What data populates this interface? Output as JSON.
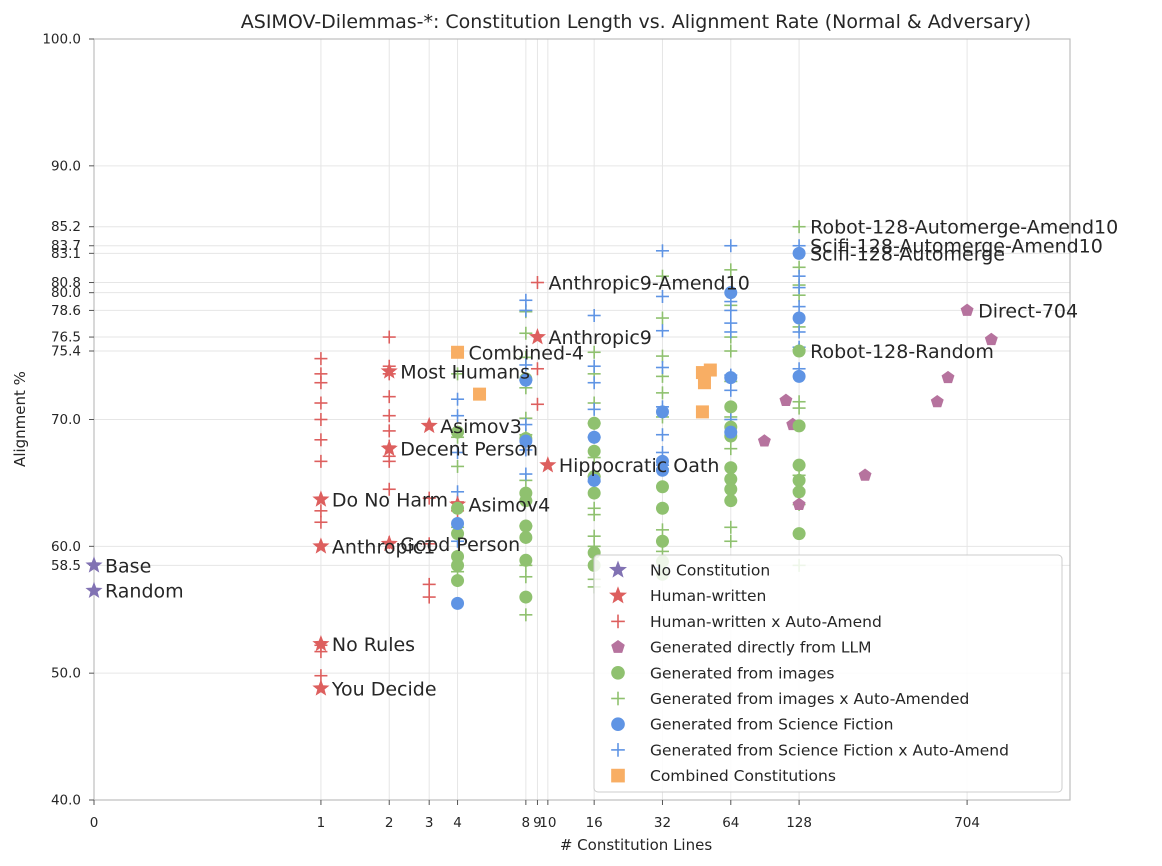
{
  "chart_data": {
    "type": "scatter",
    "title": "ASIMOV-Dilemmas-*: Constitution Length vs. Alignment Rate (Normal & Adversary)",
    "xlabel": "# Constitution Lines",
    "ylabel": "Alignment %",
    "x_scale": "symlog",
    "ylim": [
      40.0,
      100.0
    ],
    "x_ticks": [
      0,
      1,
      2,
      3,
      4,
      8,
      9,
      10,
      16,
      32,
      64,
      128,
      704
    ],
    "x_tick_labels": [
      "0",
      "1",
      "2",
      "3",
      "4",
      "8",
      "9",
      "10",
      "16",
      "32",
      "64",
      "128",
      "704"
    ],
    "y_ticks": [
      40.0,
      50.0,
      58.5,
      60.0,
      70.0,
      75.4,
      76.5,
      78.6,
      80.0,
      80.8,
      83.1,
      83.7,
      85.2,
      90.0,
      100.0
    ],
    "y_tick_labels": [
      "40.0",
      "50.0",
      "58.5",
      "60.0",
      "70.0",
      "75.4",
      "76.5",
      "78.6",
      "80.0",
      "80.8",
      "83.1",
      "83.7",
      "85.2",
      "90.0",
      "100.0"
    ],
    "grid": true,
    "legend_position": "bottom-right",
    "colors": {
      "purple": "#8172b3",
      "red": "#dd5f5e",
      "pink": "#b6739e",
      "green": "#8fc16f",
      "blue": "#5f94e4",
      "orange": "#f8ae64",
      "grid": "#e6e6e6",
      "axis": "#bdbdbd"
    },
    "series": [
      {
        "name": "No Constitution",
        "marker": "star",
        "color": "#8172b3",
        "points": [
          [
            0,
            58.5
          ],
          [
            0,
            56.5
          ]
        ]
      },
      {
        "name": "Human-written",
        "marker": "star",
        "color": "#dd5f5e",
        "points": [
          [
            1,
            63.7
          ],
          [
            1,
            60.0
          ],
          [
            1,
            52.3
          ],
          [
            1,
            48.8
          ],
          [
            2,
            73.8
          ],
          [
            2,
            67.7
          ],
          [
            2,
            60.2
          ],
          [
            3,
            69.5
          ],
          [
            4,
            63.3
          ],
          [
            9,
            76.5
          ],
          [
            10,
            66.4
          ]
        ]
      },
      {
        "name": "Human-written x Auto-Amend",
        "marker": "plus",
        "color": "#dd5f5e",
        "points": [
          [
            1,
            74.8
          ],
          [
            1,
            73.6
          ],
          [
            1,
            72.9
          ],
          [
            1,
            71.3
          ],
          [
            1,
            70.0
          ],
          [
            1,
            68.4
          ],
          [
            1,
            66.7
          ],
          [
            1,
            62.8
          ],
          [
            1,
            61.9
          ],
          [
            1,
            52.2
          ],
          [
            1,
            51.7
          ],
          [
            1,
            49.8
          ],
          [
            2,
            76.5
          ],
          [
            2,
            74.2
          ],
          [
            2,
            73.6
          ],
          [
            2,
            71.8
          ],
          [
            2,
            70.3
          ],
          [
            2,
            69.1
          ],
          [
            2,
            67.9
          ],
          [
            2,
            67.1
          ],
          [
            2,
            66.7
          ],
          [
            2,
            64.5
          ],
          [
            2,
            60.3
          ],
          [
            3,
            63.8
          ],
          [
            3,
            60.2
          ],
          [
            3,
            57.0
          ],
          [
            3,
            56.0
          ],
          [
            4,
            63.5
          ],
          [
            4,
            62.8
          ],
          [
            9,
            80.8
          ],
          [
            9,
            74.0
          ],
          [
            9,
            71.2
          ]
        ]
      },
      {
        "name": "Generated directly from LLM",
        "marker": "pentagon",
        "color": "#b6739e",
        "points": [
          [
            90,
            68.3
          ],
          [
            112,
            71.5
          ],
          [
            120,
            69.6
          ],
          [
            128,
            64.3
          ],
          [
            128,
            63.3
          ],
          [
            250,
            65.6
          ],
          [
            520,
            71.4
          ],
          [
            580,
            73.3
          ],
          [
            704,
            78.6
          ],
          [
            900,
            76.3
          ]
        ]
      },
      {
        "name": "Generated from images",
        "marker": "circle",
        "color": "#8fc16f",
        "points": [
          [
            4,
            69.0
          ],
          [
            4,
            63.0
          ],
          [
            4,
            61.0
          ],
          [
            4,
            59.2
          ],
          [
            4,
            58.5
          ],
          [
            4,
            57.3
          ],
          [
            8,
            73.2
          ],
          [
            8,
            68.5
          ],
          [
            8,
            64.2
          ],
          [
            8,
            63.6
          ],
          [
            8,
            61.6
          ],
          [
            8,
            60.7
          ],
          [
            8,
            58.9
          ],
          [
            8,
            56.0
          ],
          [
            16,
            69.7
          ],
          [
            16,
            67.5
          ],
          [
            16,
            65.5
          ],
          [
            16,
            64.2
          ],
          [
            16,
            59.5
          ],
          [
            16,
            58.5
          ],
          [
            32,
            64.7
          ],
          [
            32,
            63.0
          ],
          [
            32,
            60.4
          ],
          [
            32,
            58.8
          ],
          [
            32,
            57.8
          ],
          [
            64,
            71.0
          ],
          [
            64,
            69.4
          ],
          [
            64,
            68.7
          ],
          [
            64,
            66.2
          ],
          [
            64,
            65.3
          ],
          [
            64,
            64.5
          ],
          [
            64,
            63.6
          ],
          [
            128,
            75.4
          ],
          [
            128,
            69.5
          ],
          [
            128,
            66.4
          ],
          [
            128,
            65.2
          ],
          [
            128,
            64.3
          ],
          [
            128,
            61.0
          ]
        ]
      },
      {
        "name": "Generated from images x Auto-Amended",
        "marker": "plus",
        "color": "#8fc16f",
        "points": [
          [
            4,
            73.6
          ],
          [
            4,
            68.6
          ],
          [
            4,
            66.3
          ],
          [
            4,
            61.5
          ],
          [
            4,
            58.0
          ],
          [
            8,
            78.5
          ],
          [
            8,
            76.8
          ],
          [
            8,
            74.9
          ],
          [
            8,
            72.5
          ],
          [
            8,
            70.1
          ],
          [
            8,
            68.8
          ],
          [
            8,
            65.2
          ],
          [
            8,
            61.6
          ],
          [
            8,
            58.5
          ],
          [
            8,
            57.6
          ],
          [
            8,
            54.6
          ],
          [
            16,
            75.3
          ],
          [
            16,
            73.6
          ],
          [
            16,
            71.3
          ],
          [
            16,
            69.7
          ],
          [
            16,
            67.0
          ],
          [
            16,
            65.5
          ],
          [
            16,
            63.0
          ],
          [
            16,
            62.5
          ],
          [
            16,
            60.8
          ],
          [
            16,
            60.0
          ],
          [
            16,
            57.4
          ],
          [
            16,
            56.8
          ],
          [
            32,
            81.3
          ],
          [
            32,
            78.0
          ],
          [
            32,
            75.0
          ],
          [
            32,
            73.4
          ],
          [
            32,
            72.1
          ],
          [
            32,
            70.2
          ],
          [
            32,
            66.1
          ],
          [
            32,
            61.3
          ],
          [
            32,
            59.6
          ],
          [
            64,
            81.8
          ],
          [
            64,
            79.0
          ],
          [
            64,
            76.5
          ],
          [
            64,
            75.4
          ],
          [
            64,
            73.0
          ],
          [
            64,
            70.2
          ],
          [
            64,
            67.7
          ],
          [
            64,
            61.5
          ],
          [
            64,
            60.4
          ],
          [
            128,
            85.2
          ],
          [
            128,
            82.0
          ],
          [
            128,
            80.6
          ],
          [
            128,
            79.8
          ],
          [
            128,
            77.3
          ],
          [
            128,
            75.5
          ],
          [
            128,
            71.4
          ],
          [
            128,
            70.9
          ],
          [
            128,
            65.6
          ],
          [
            128,
            63.3
          ],
          [
            128,
            58.5
          ]
        ]
      },
      {
        "name": "Generated from Science Fiction",
        "marker": "circle",
        "color": "#5f94e4",
        "points": [
          [
            4,
            61.8
          ],
          [
            4,
            55.5
          ],
          [
            8,
            73.1
          ],
          [
            8,
            68.3
          ],
          [
            16,
            68.6
          ],
          [
            16,
            65.2
          ],
          [
            32,
            70.6
          ],
          [
            32,
            66.7
          ],
          [
            32,
            66.0
          ],
          [
            64,
            80.0
          ],
          [
            64,
            73.3
          ],
          [
            64,
            69.0
          ],
          [
            128,
            83.1
          ],
          [
            128,
            78.0
          ],
          [
            128,
            73.4
          ]
        ]
      },
      {
        "name": "Generated from Science Fiction x Auto-Amend",
        "marker": "plus",
        "color": "#5f94e4",
        "points": [
          [
            4,
            71.6
          ],
          [
            4,
            70.3
          ],
          [
            4,
            67.4
          ],
          [
            4,
            64.3
          ],
          [
            4,
            60.4
          ],
          [
            8,
            79.4
          ],
          [
            8,
            78.6
          ],
          [
            8,
            74.3
          ],
          [
            8,
            73.1
          ],
          [
            8,
            69.6
          ],
          [
            8,
            67.6
          ],
          [
            8,
            65.7
          ],
          [
            16,
            78.2
          ],
          [
            16,
            74.2
          ],
          [
            16,
            72.9
          ],
          [
            16,
            70.8
          ],
          [
            16,
            68.6
          ],
          [
            16,
            65.1
          ],
          [
            32,
            83.3
          ],
          [
            32,
            79.7
          ],
          [
            32,
            77.0
          ],
          [
            32,
            74.1
          ],
          [
            32,
            71.0
          ],
          [
            32,
            68.8
          ],
          [
            32,
            67.4
          ],
          [
            32,
            66.4
          ],
          [
            32,
            58.3
          ],
          [
            64,
            83.7
          ],
          [
            64,
            79.3
          ],
          [
            64,
            78.6
          ],
          [
            64,
            77.6
          ],
          [
            64,
            76.9
          ],
          [
            64,
            73.5
          ],
          [
            64,
            72.3
          ],
          [
            64,
            70.0
          ],
          [
            128,
            83.7
          ],
          [
            128,
            81.3
          ],
          [
            128,
            80.4
          ],
          [
            128,
            78.9
          ],
          [
            128,
            76.9
          ],
          [
            128,
            75.7
          ],
          [
            128,
            74.0
          ]
        ]
      },
      {
        "name": "Combined Constitutions",
        "marker": "square",
        "color": "#f8ae64",
        "points": [
          [
            4,
            75.3
          ],
          [
            5,
            72.0
          ],
          [
            48,
            73.7
          ],
          [
            49,
            72.9
          ],
          [
            52,
            73.9
          ],
          [
            48,
            70.6
          ]
        ]
      }
    ],
    "annotations": [
      {
        "text": "Base",
        "x": 0,
        "y": 58.5
      },
      {
        "text": "Random",
        "x": 0,
        "y": 56.5
      },
      {
        "text": "Do No Harm",
        "x": 1,
        "y": 63.7
      },
      {
        "text": "Anthropic1",
        "x": 1,
        "y": 60.0
      },
      {
        "text": "No Rules",
        "x": 1,
        "y": 52.3
      },
      {
        "text": "You Decide",
        "x": 1,
        "y": 48.8
      },
      {
        "text": "Most Humans",
        "x": 2,
        "y": 73.8
      },
      {
        "text": "Decent Person",
        "x": 2,
        "y": 67.7
      },
      {
        "text": "Good Person",
        "x": 2,
        "y": 60.2
      },
      {
        "text": "Asimov3",
        "x": 3,
        "y": 69.5
      },
      {
        "text": "Asimov4",
        "x": 4,
        "y": 63.3
      },
      {
        "text": "Combined-4",
        "x": 4,
        "y": 75.3
      },
      {
        "text": "Anthropic9-Amend10",
        "x": 9,
        "y": 80.8
      },
      {
        "text": "Anthropic9",
        "x": 9,
        "y": 76.5
      },
      {
        "text": "Hippocratic Oath",
        "x": 10,
        "y": 66.4
      },
      {
        "text": "Robot-128-Automerge-Amend10",
        "x": 128,
        "y": 85.2
      },
      {
        "text": "Scifi-128-Automerge-Amend10",
        "x": 128,
        "y": 83.7
      },
      {
        "text": "Scifi-128-Automerge",
        "x": 128,
        "y": 83.1
      },
      {
        "text": "Robot-128-Random",
        "x": 128,
        "y": 75.4
      },
      {
        "text": "Direct-704",
        "x": 704,
        "y": 78.6
      }
    ]
  }
}
